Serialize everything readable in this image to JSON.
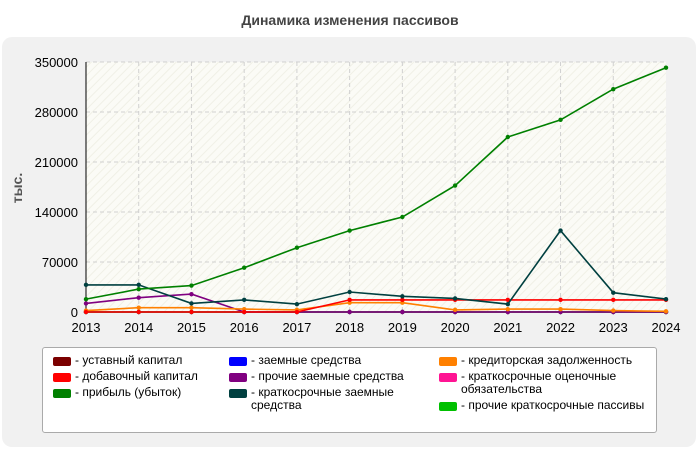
{
  "chart_data": {
    "type": "line",
    "title": "Динамика изменения пассивов",
    "ylabel": "тыс.",
    "xlabel": "",
    "ylim": [
      0,
      350000
    ],
    "yticks": [
      "0",
      "70000",
      "140000",
      "210000",
      "280000",
      "350000"
    ],
    "ytick_values": [
      0,
      70000,
      140000,
      210000,
      280000,
      350000
    ],
    "categories": [
      "2013",
      "2014",
      "2015",
      "2016",
      "2017",
      "2018",
      "2019",
      "2020",
      "2021",
      "2022",
      "2023",
      "2024"
    ],
    "grid": true,
    "legend_position": "bottom",
    "series": [
      {
        "name": "уставный капитал",
        "color": "#7b0000",
        "values": [
          0,
          0,
          0,
          0,
          0,
          0,
          0,
          0,
          0,
          0,
          0,
          0
        ]
      },
      {
        "name": "добавочный капитал",
        "color": "#ff0000",
        "values": [
          0,
          0,
          0,
          0,
          0,
          17000,
          17000,
          17000,
          17000,
          17000,
          17000,
          17000
        ]
      },
      {
        "name": "прибыль (убыток)",
        "color": "#008000",
        "values": [
          18000,
          32000,
          37000,
          62000,
          90000,
          114000,
          133000,
          177000,
          245000,
          269000,
          312000,
          342000
        ]
      },
      {
        "name": "заемные средства",
        "color": "#0000ff",
        "values": [
          0,
          0,
          0,
          0,
          0,
          0,
          0,
          0,
          0,
          0,
          0,
          0
        ]
      },
      {
        "name": "прочие заемные средства",
        "color": "#800080",
        "values": [
          12000,
          20000,
          25000,
          0,
          0,
          0,
          0,
          0,
          0,
          0,
          0,
          0
        ]
      },
      {
        "name": "краткосрочные заемные средства",
        "color": "#004040",
        "values": [
          38000,
          38000,
          12000,
          17000,
          11000,
          28000,
          22000,
          19000,
          11000,
          114000,
          27000,
          18000
        ]
      },
      {
        "name": "кредиторская задолженность",
        "color": "#ff8000",
        "values": [
          2000,
          6000,
          6000,
          4000,
          3000,
          13000,
          13000,
          3000,
          4000,
          4000,
          2000,
          1000
        ]
      },
      {
        "name": "краткосрочные оценочные обязательства",
        "color": "#ff1493",
        "values": [
          0,
          0,
          0,
          0,
          0,
          0,
          0,
          0,
          0,
          0,
          0,
          0
        ]
      },
      {
        "name": "прочие краткосрочные пассивы",
        "color": "#00c000",
        "values": [
          0,
          0,
          0,
          0,
          0,
          0,
          0,
          0,
          0,
          0,
          0,
          0
        ]
      }
    ]
  },
  "legend": {
    "columns": [
      [
        0,
        1,
        2
      ],
      [
        3,
        4,
        5
      ],
      [
        6,
        7,
        8
      ]
    ]
  }
}
